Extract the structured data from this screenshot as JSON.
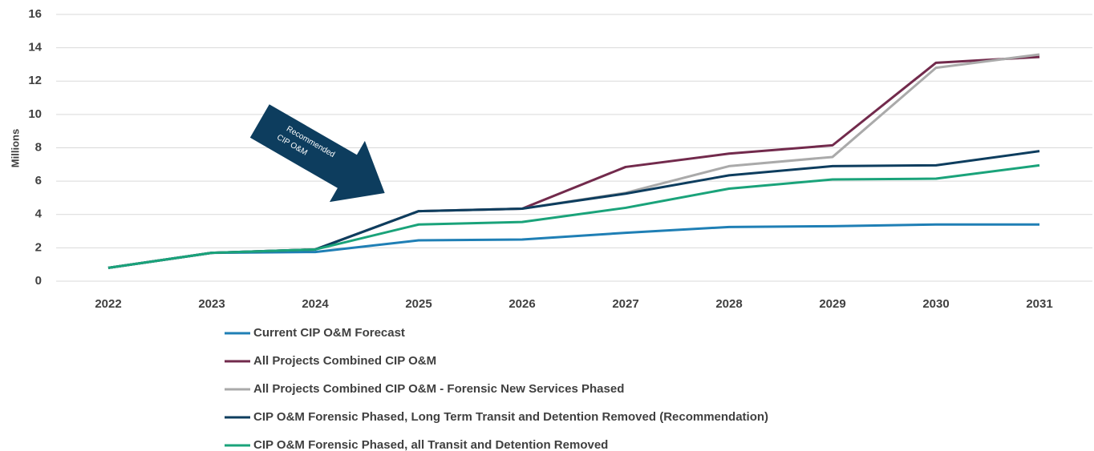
{
  "chart_data": {
    "type": "line",
    "y_label": "Millions",
    "annotation": [
      "Recommended",
      "CIP O&M"
    ],
    "categories": [
      "2022",
      "2023",
      "2024",
      "2025",
      "2026",
      "2027",
      "2028",
      "2029",
      "2030",
      "2031"
    ],
    "ylim": [
      0,
      16
    ],
    "yticks": [
      0,
      2,
      4,
      6,
      8,
      10,
      12,
      14,
      16
    ],
    "grid": true,
    "legend": "bottom",
    "series": [
      {
        "name": "Current CIP O&M Forecast",
        "color": "#1f7fb5",
        "values": [
          0.8,
          1.7,
          1.75,
          2.45,
          2.5,
          2.9,
          3.25,
          3.3,
          3.4,
          3.4
        ]
      },
      {
        "name": "All Projects Combined CIP O&M",
        "color": "#722a4c",
        "values": [
          0.8,
          1.7,
          1.9,
          4.2,
          4.35,
          6.85,
          7.65,
          8.15,
          13.1,
          13.45
        ]
      },
      {
        "name": "All Projects Combined CIP O&M - Forensic New Services Phased",
        "color": "#aaaaaa",
        "values": [
          0.8,
          1.7,
          1.9,
          4.2,
          4.35,
          5.3,
          6.9,
          7.45,
          12.8,
          13.6
        ]
      },
      {
        "name": "CIP O&M Forensic Phased, Long Term Transit and Detention Removed (Recommendation)",
        "color": "#0d3d5e",
        "values": [
          0.8,
          1.7,
          1.9,
          4.2,
          4.35,
          5.25,
          6.35,
          6.9,
          6.95,
          7.8
        ]
      },
      {
        "name": "CIP O&M Forensic Phased, all Transit and Detention Removed",
        "color": "#1aa37a",
        "values": [
          0.8,
          1.7,
          1.9,
          3.4,
          3.55,
          4.4,
          5.55,
          6.1,
          6.15,
          6.95
        ]
      }
    ]
  }
}
